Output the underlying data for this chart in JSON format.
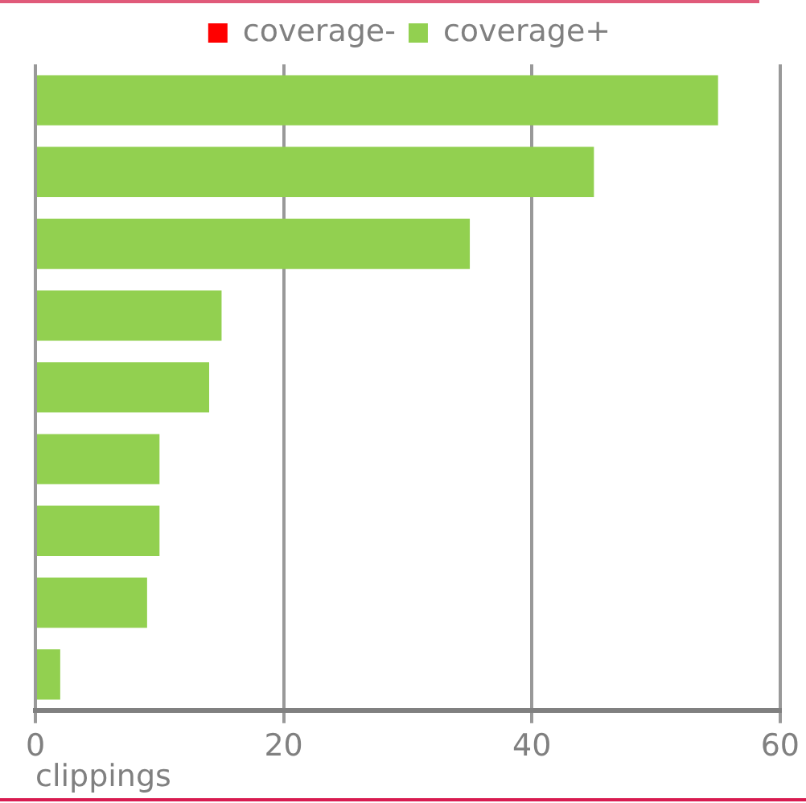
{
  "chart_data": {
    "type": "bar",
    "orientation": "horizontal",
    "stacked": true,
    "xlabel": "clippings",
    "categories": [
      null,
      null,
      null,
      null,
      null,
      null,
      null,
      null,
      null
    ],
    "series": [
      {
        "name": "coverage-",
        "color": "#ff0000",
        "values": [
          null,
          null,
          null,
          null,
          null,
          null,
          null,
          null,
          null
        ]
      },
      {
        "name": "coverage+",
        "color": "#92d050",
        "values": [
          55,
          45,
          35,
          15,
          14,
          10,
          10,
          9,
          2
        ]
      }
    ],
    "xlim": [
      0,
      60
    ],
    "xticks": [
      0,
      20,
      40,
      60
    ],
    "grid": "x",
    "legend": "top"
  }
}
